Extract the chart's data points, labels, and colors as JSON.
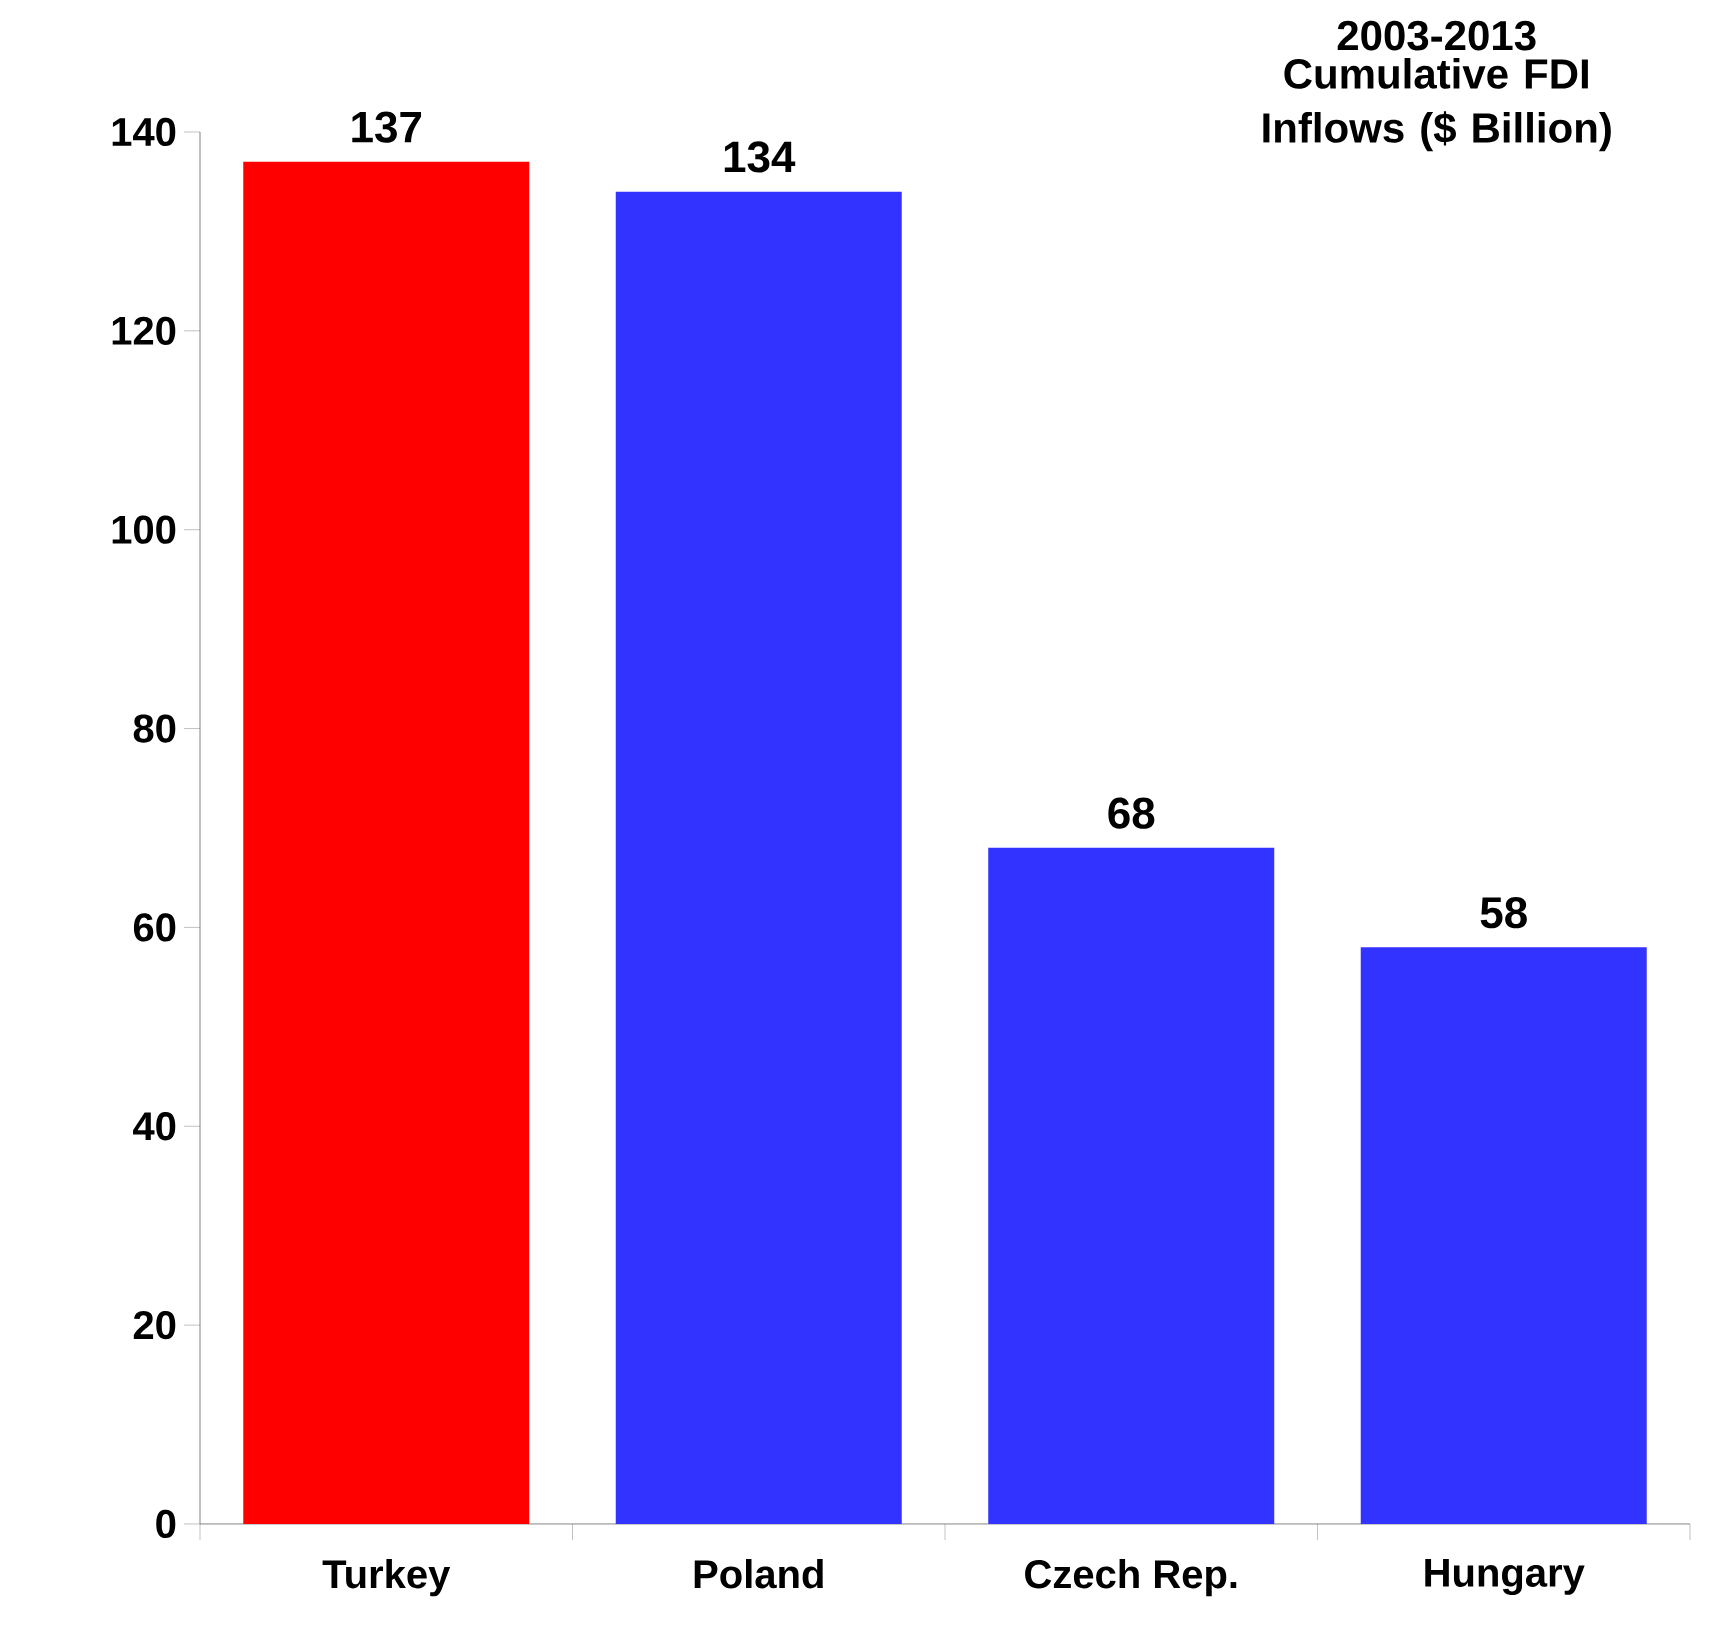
{
  "chart_data": {
    "type": "bar",
    "title": "2003-2013",
    "subtitle": "Cumulative FDI Inflows ($ Billion)",
    "categories": [
      "Turkey",
      "Poland",
      "Czech Rep.",
      "Hungary"
    ],
    "values": [
      137,
      134,
      68,
      58
    ],
    "colors": [
      "#ff0000",
      "#3333ff",
      "#3333ff",
      "#3333ff"
    ],
    "ylim": [
      0,
      140
    ],
    "yticks": [
      0,
      20,
      40,
      60,
      80,
      100,
      120,
      140
    ],
    "grid": false,
    "data_labels": true
  }
}
